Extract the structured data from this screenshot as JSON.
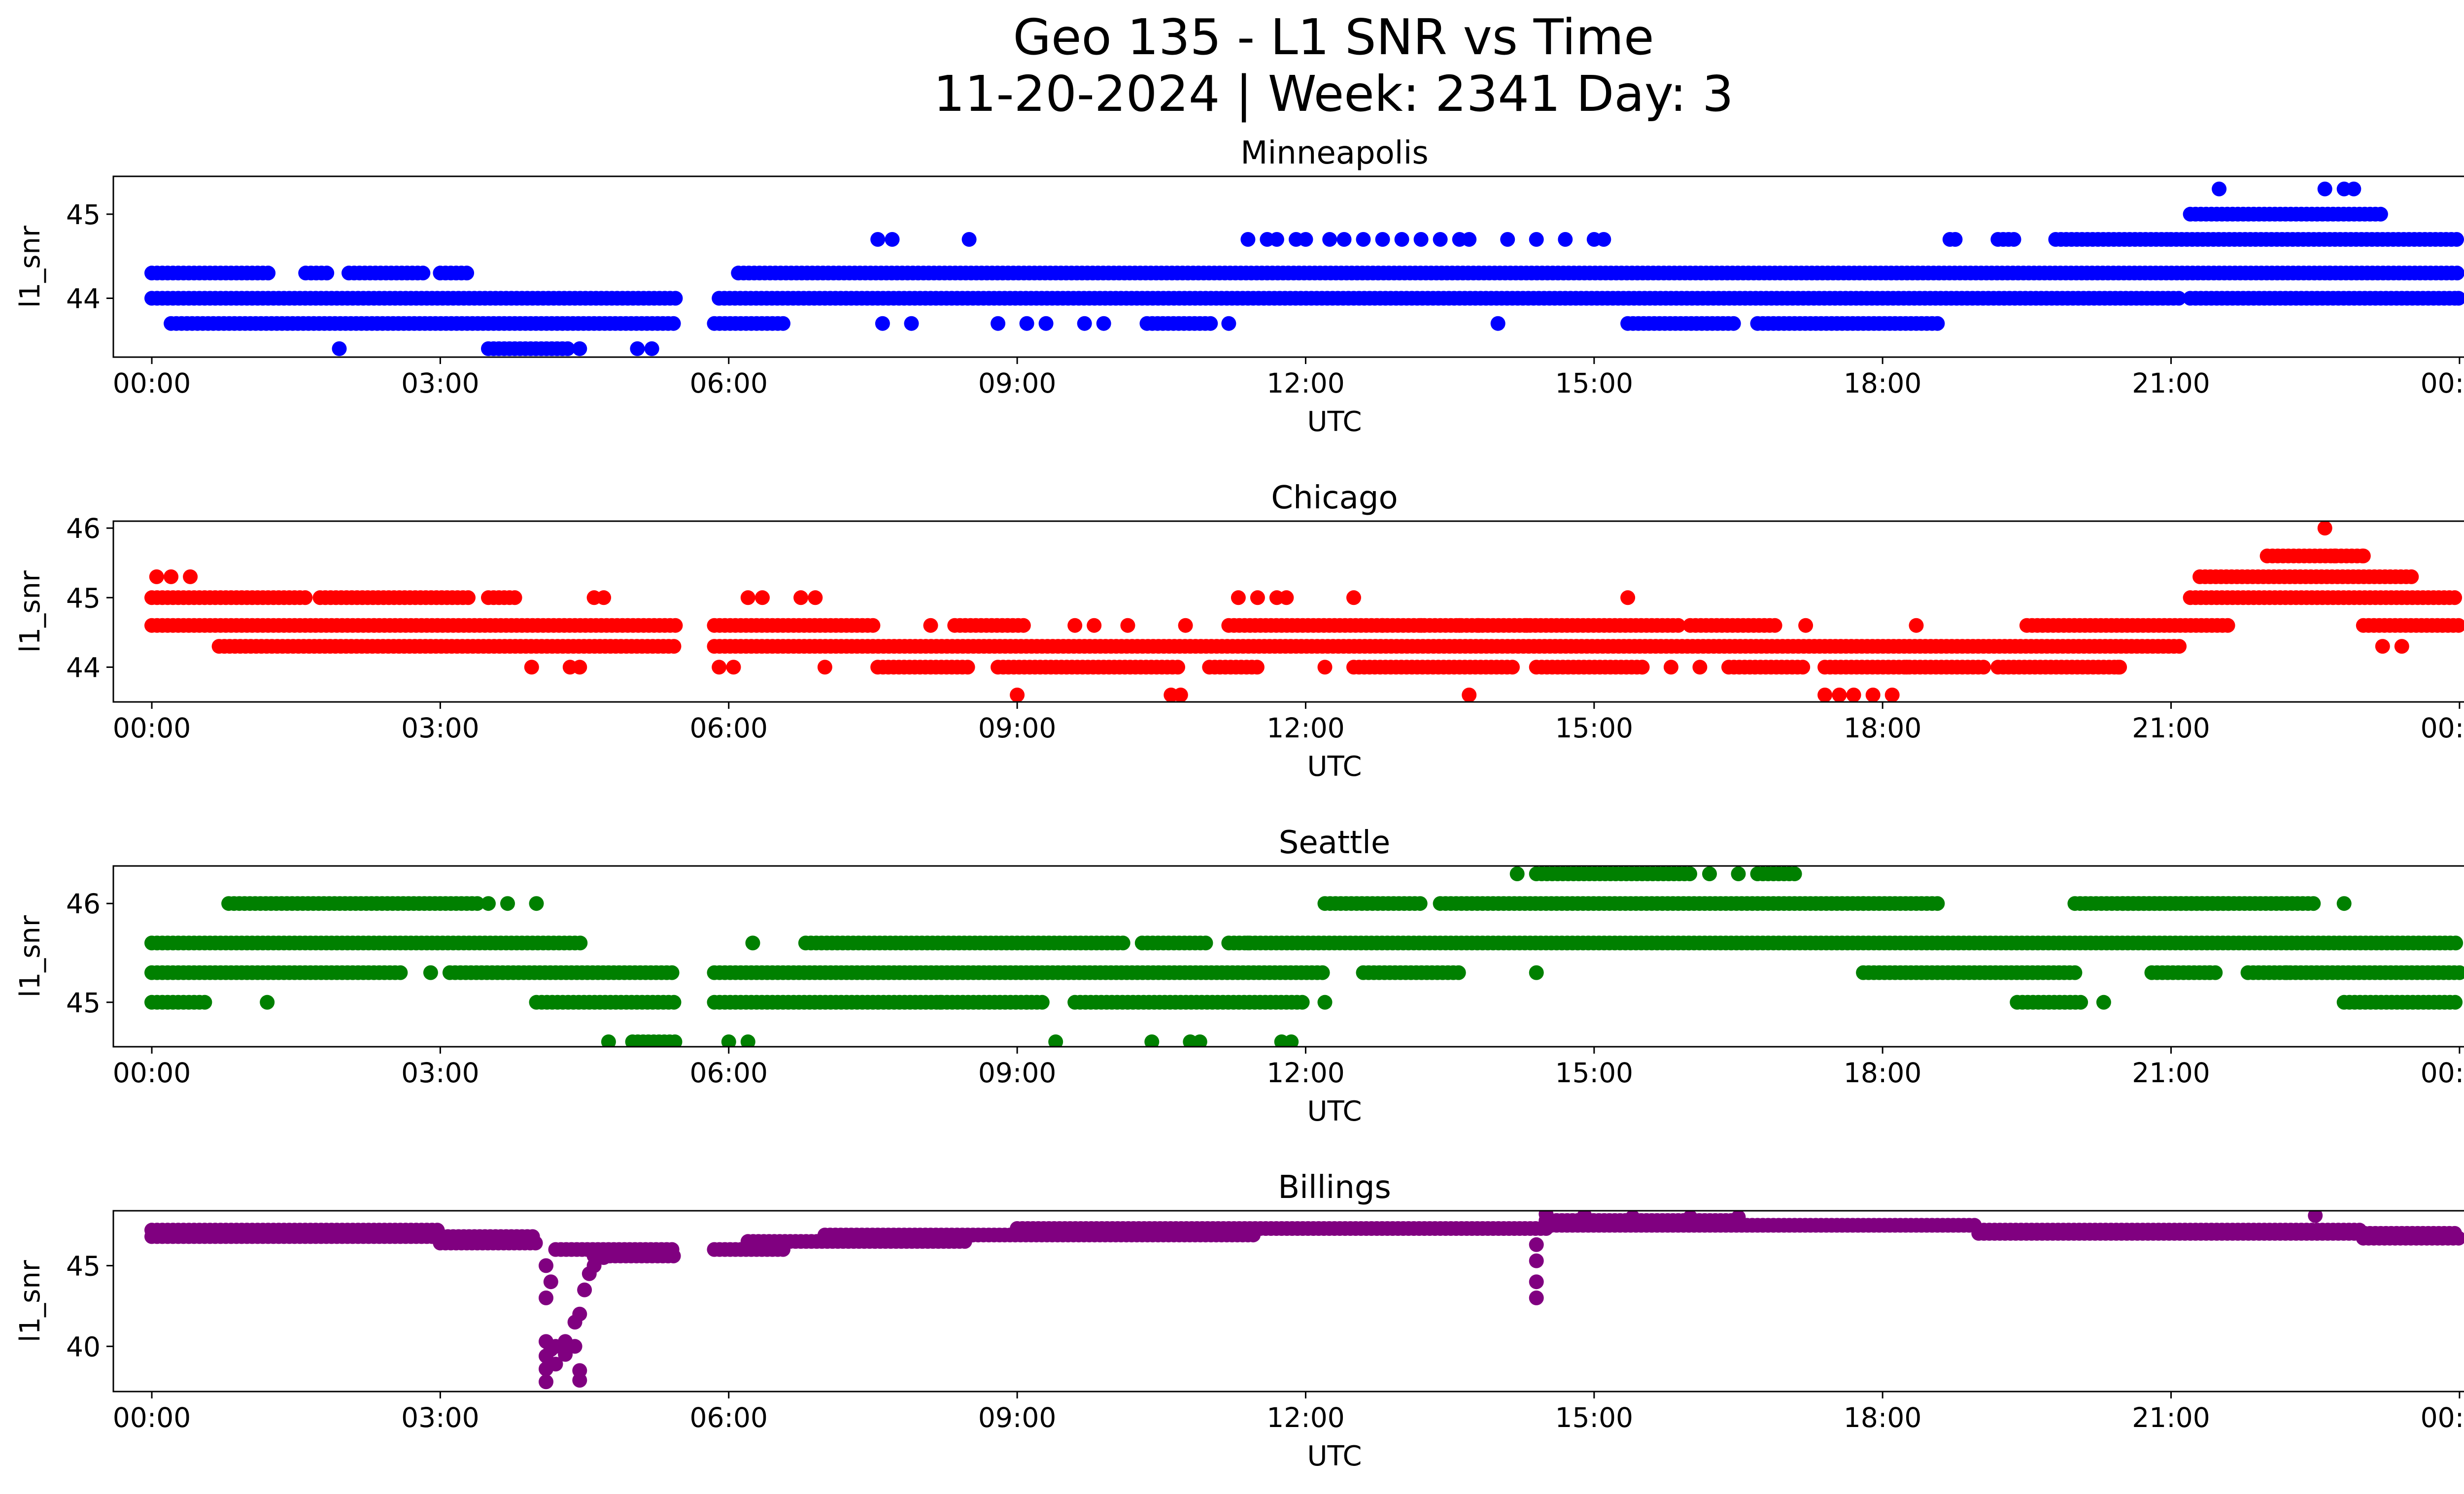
{
  "figure": {
    "title_line1": "Geo 135 - L1 SNR vs Time",
    "title_line2": "11-20-2024 | Week: 2341 Day: 3"
  },
  "chart_data": [
    {
      "type": "scatter",
      "title": "Minneapolis",
      "xlabel": "UTC",
      "ylabel": "l1_snr",
      "color": "#0000ff",
      "xlim": [
        -0.4,
        25.0
      ],
      "ylim": [
        43.3,
        45.45
      ],
      "xticks": [
        0,
        3,
        6,
        9,
        12,
        15,
        18,
        21,
        24
      ],
      "xticklabels": [
        "00:00",
        "03:00",
        "06:00",
        "09:00",
        "12:00",
        "15:00",
        "18:00",
        "21:00",
        "00:00"
      ],
      "yticks": [
        44,
        45
      ],
      "yticklabels": [
        "44",
        "45"
      ],
      "segments": [
        {
          "y": 44.0,
          "ranges": [
            [
              0.0,
              5.45
            ],
            [
              5.9,
              21.1
            ],
            [
              21.2,
              24.0
            ]
          ]
        },
        {
          "y": 44.3,
          "ranges": [
            [
              0.0,
              1.25
            ],
            [
              1.6,
              1.85
            ],
            [
              2.05,
              2.85
            ],
            [
              3.0,
              3.3
            ],
            [
              6.1,
              23.99
            ]
          ]
        },
        {
          "y": 43.7,
          "ranges": [
            [
              0.2,
              5.45
            ],
            [
              5.85,
              6.6
            ],
            [
              10.35,
              11.05
            ],
            [
              15.35,
              16.5
            ],
            [
              16.7,
              18.6
            ]
          ]
        },
        {
          "y": 44.7,
          "ranges": [
            [
              18.7,
              18.8
            ],
            [
              19.2,
              19.4
            ],
            [
              19.8,
              21.0
            ],
            [
              21.0,
              23.99
            ]
          ]
        },
        {
          "y": 45.0,
          "ranges": [
            [
              21.2,
              23.2
            ]
          ]
        },
        {
          "y": 43.4,
          "ranges": [
            [
              3.5,
              4.35
            ]
          ]
        }
      ],
      "points": [
        [
          1.95,
          43.4
        ],
        [
          4.45,
          43.4
        ],
        [
          5.05,
          43.4
        ],
        [
          5.2,
          43.4
        ],
        [
          7.55,
          44.7
        ],
        [
          7.7,
          44.7
        ],
        [
          8.5,
          44.7
        ],
        [
          7.6,
          43.7
        ],
        [
          7.9,
          43.7
        ],
        [
          8.8,
          43.7
        ],
        [
          9.1,
          43.7
        ],
        [
          9.3,
          43.7
        ],
        [
          9.7,
          43.7
        ],
        [
          9.9,
          43.7
        ],
        [
          11.2,
          43.7
        ],
        [
          14.0,
          43.7
        ],
        [
          11.4,
          44.7
        ],
        [
          11.6,
          44.7
        ],
        [
          11.7,
          44.7
        ],
        [
          11.9,
          44.7
        ],
        [
          12.0,
          44.7
        ],
        [
          12.25,
          44.7
        ],
        [
          12.4,
          44.7
        ],
        [
          12.6,
          44.7
        ],
        [
          12.8,
          44.7
        ],
        [
          13.0,
          44.7
        ],
        [
          13.2,
          44.7
        ],
        [
          13.4,
          44.7
        ],
        [
          13.6,
          44.7
        ],
        [
          13.7,
          44.7
        ],
        [
          14.1,
          44.7
        ],
        [
          14.4,
          44.7
        ],
        [
          14.7,
          44.7
        ],
        [
          15.0,
          44.7
        ],
        [
          15.1,
          44.7
        ],
        [
          21.5,
          45.3
        ],
        [
          22.6,
          45.3
        ],
        [
          22.8,
          45.3
        ],
        [
          22.9,
          45.3
        ],
        [
          22.65,
          44.3
        ],
        [
          23.99,
          44.0
        ]
      ]
    },
    {
      "type": "scatter",
      "title": "Chicago",
      "xlabel": "UTC",
      "ylabel": "l1_snr",
      "color": "#ff0000",
      "xlim": [
        -0.4,
        25.0
      ],
      "ylim": [
        43.5,
        46.1
      ],
      "xticks": [
        0,
        3,
        6,
        9,
        12,
        15,
        18,
        21,
        24
      ],
      "xticklabels": [
        "00:00",
        "03:00",
        "06:00",
        "09:00",
        "12:00",
        "15:00",
        "18:00",
        "21:00",
        "00:00"
      ],
      "yticks": [
        44,
        45,
        46
      ],
      "yticklabels": [
        "44",
        "45",
        "46"
      ],
      "segments": [
        {
          "y": 45.0,
          "ranges": [
            [
              0.0,
              1.6
            ],
            [
              1.75,
              3.3
            ],
            [
              3.5,
              3.8
            ],
            [
              21.2,
              24.0
            ]
          ]
        },
        {
          "y": 44.6,
          "ranges": [
            [
              0.0,
              5.45
            ],
            [
              5.85,
              7.5
            ],
            [
              8.35,
              9.1
            ],
            [
              11.2,
              15.9
            ],
            [
              16.0,
              16.9
            ],
            [
              19.5,
              21.6
            ],
            [
              23.0,
              24.0
            ]
          ]
        },
        {
          "y": 44.3,
          "ranges": [
            [
              0.7,
              5.45
            ],
            [
              5.85,
              21.1
            ]
          ]
        },
        {
          "y": 44.0,
          "ranges": [
            [
              7.55,
              8.5
            ],
            [
              8.8,
              10.7
            ],
            [
              11.0,
              11.5
            ],
            [
              12.5,
              14.2
            ],
            [
              14.4,
              15.5
            ],
            [
              16.4,
              17.2
            ],
            [
              17.4,
              19.1
            ],
            [
              19.2,
              20.5
            ]
          ]
        },
        {
          "y": 45.3,
          "ranges": [
            [
              21.3,
              23.5
            ]
          ]
        },
        {
          "y": 45.6,
          "ranges": [
            [
              22.0,
              23.0
            ]
          ]
        }
      ],
      "points": [
        [
          0.05,
          45.3
        ],
        [
          0.2,
          45.3
        ],
        [
          0.4,
          45.3
        ],
        [
          3.95,
          44.0
        ],
        [
          4.35,
          44.0
        ],
        [
          4.45,
          44.0
        ],
        [
          4.6,
          45.0
        ],
        [
          4.7,
          45.0
        ],
        [
          5.9,
          44.0
        ],
        [
          6.05,
          44.0
        ],
        [
          6.2,
          45.0
        ],
        [
          6.35,
          45.0
        ],
        [
          6.75,
          45.0
        ],
        [
          6.9,
          45.0
        ],
        [
          7.0,
          44.0
        ],
        [
          8.1,
          44.6
        ],
        [
          9.0,
          43.6
        ],
        [
          9.6,
          44.6
        ],
        [
          9.8,
          44.6
        ],
        [
          10.15,
          44.6
        ],
        [
          10.6,
          43.6
        ],
        [
          10.7,
          43.6
        ],
        [
          10.75,
          44.6
        ],
        [
          11.3,
          45.0
        ],
        [
          11.5,
          45.0
        ],
        [
          11.7,
          45.0
        ],
        [
          11.8,
          45.0
        ],
        [
          12.2,
          44.0
        ],
        [
          12.5,
          45.0
        ],
        [
          12.8,
          44.6
        ],
        [
          13.2,
          44.6
        ],
        [
          13.6,
          44.6
        ],
        [
          13.7,
          43.6
        ],
        [
          13.8,
          44.6
        ],
        [
          14.3,
          44.6
        ],
        [
          15.35,
          45.0
        ],
        [
          15.5,
          44.0
        ],
        [
          15.8,
          44.0
        ],
        [
          16.1,
          44.0
        ],
        [
          17.2,
          44.6
        ],
        [
          17.4,
          43.6
        ],
        [
          17.55,
          43.6
        ],
        [
          17.7,
          43.6
        ],
        [
          17.9,
          43.6
        ],
        [
          18.1,
          43.6
        ],
        [
          18.25,
          44.0
        ],
        [
          18.35,
          44.6
        ],
        [
          20.45,
          44.0
        ],
        [
          22.6,
          46.0
        ],
        [
          22.7,
          45.6
        ],
        [
          23.0,
          45.6
        ],
        [
          23.2,
          44.3
        ],
        [
          23.4,
          44.3
        ]
      ]
    },
    {
      "type": "scatter",
      "title": "Seattle",
      "xlabel": "UTC",
      "ylabel": "l1_snr",
      "color": "#008000",
      "xlim": [
        -0.4,
        25.0
      ],
      "ylim": [
        44.55,
        46.38
      ],
      "xticks": [
        0,
        3,
        6,
        9,
        12,
        15,
        18,
        21,
        24
      ],
      "xticklabels": [
        "00:00",
        "03:00",
        "06:00",
        "09:00",
        "12:00",
        "15:00",
        "18:00",
        "21:00",
        "00:00"
      ],
      "yticks": [
        45,
        46
      ],
      "yticklabels": [
        "45",
        "46"
      ],
      "segments": [
        {
          "y": 46.0,
          "ranges": [
            [
              0.8,
              3.4
            ],
            [
              12.2,
              13.2
            ],
            [
              13.4,
              18.6
            ],
            [
              20.0,
              21.6
            ],
            [
              20.5,
              22.5
            ]
          ]
        },
        {
          "y": 45.6,
          "ranges": [
            [
              0.0,
              4.5
            ],
            [
              6.8,
              10.1
            ],
            [
              10.3,
              11.0
            ],
            [
              11.2,
              24.0
            ]
          ]
        },
        {
          "y": 45.3,
          "ranges": [
            [
              0.0,
              2.6
            ],
            [
              3.1,
              5.45
            ],
            [
              5.85,
              12.2
            ],
            [
              12.6,
              13.6
            ],
            [
              17.8,
              20.0
            ],
            [
              20.8,
              21.5
            ],
            [
              21.8,
              24.0
            ]
          ]
        },
        {
          "y": 45.0,
          "ranges": [
            [
              0.0,
              0.6
            ],
            [
              4.0,
              5.45
            ],
            [
              5.85,
              9.3
            ],
            [
              9.6,
              12.0
            ],
            [
              19.4,
              20.1
            ],
            [
              22.8,
              24.0
            ]
          ]
        },
        {
          "y": 46.3,
          "ranges": [
            [
              14.4,
              16.0
            ],
            [
              16.7,
              17.1
            ]
          ]
        },
        {
          "y": 44.6,
          "ranges": [
            [
              5.0,
              5.45
            ]
          ]
        }
      ],
      "points": [
        [
          1.2,
          45.0
        ],
        [
          2.9,
          45.3
        ],
        [
          3.5,
          46.0
        ],
        [
          3.7,
          46.0
        ],
        [
          4.0,
          46.0
        ],
        [
          4.75,
          44.6
        ],
        [
          6.0,
          44.6
        ],
        [
          6.2,
          44.6
        ],
        [
          6.25,
          45.6
        ],
        [
          8.2,
          45.0
        ],
        [
          9.1,
          45.0
        ],
        [
          9.4,
          44.6
        ],
        [
          10.4,
          44.6
        ],
        [
          10.8,
          44.6
        ],
        [
          10.9,
          44.6
        ],
        [
          11.4,
          45.6
        ],
        [
          11.75,
          44.6
        ],
        [
          11.85,
          44.6
        ],
        [
          12.2,
          45.0
        ],
        [
          14.4,
          45.3
        ],
        [
          14.2,
          46.3
        ],
        [
          16.2,
          46.3
        ],
        [
          16.5,
          46.3
        ],
        [
          17.8,
          46.0
        ],
        [
          20.3,
          45.0
        ],
        [
          21.4,
          45.3
        ],
        [
          22.2,
          45.3
        ],
        [
          22.8,
          46.0
        ]
      ]
    },
    {
      "type": "scatter",
      "title": "Billings",
      "xlabel": "UTC",
      "ylabel": "l1_snr",
      "color": "#800080",
      "xlim": [
        -0.4,
        25.0
      ],
      "ylim": [
        37.2,
        48.4
      ],
      "xticks": [
        0,
        3,
        6,
        9,
        12,
        15,
        18,
        21,
        24
      ],
      "xticklabels": [
        "00:00",
        "03:00",
        "06:00",
        "09:00",
        "12:00",
        "15:00",
        "18:00",
        "21:00",
        "00:00"
      ],
      "yticks": [
        40,
        45
      ],
      "yticklabels": [
        "40",
        "45"
      ],
      "segments": [
        {
          "y": 46.8,
          "ranges": [
            [
              0.0,
              4.0
            ]
          ]
        },
        {
          "y": 47.2,
          "ranges": [
            [
              0.0,
              3.0
            ]
          ]
        },
        {
          "y": 46.4,
          "ranges": [
            [
              3.0,
              4.0
            ]
          ]
        },
        {
          "y": 46.0,
          "ranges": [
            [
              4.2,
              5.45
            ],
            [
              5.85,
              6.6
            ]
          ]
        },
        {
          "y": 45.6,
          "ranges": [
            [
              4.6,
              5.45
            ]
          ]
        },
        {
          "y": 46.5,
          "ranges": [
            [
              6.2,
              8.5
            ]
          ]
        },
        {
          "y": 46.9,
          "ranges": [
            [
              7.0,
              11.5
            ]
          ]
        },
        {
          "y": 47.3,
          "ranges": [
            [
              9.0,
              14.5
            ]
          ]
        },
        {
          "y": 47.5,
          "ranges": [
            [
              14.5,
              19.0
            ]
          ]
        },
        {
          "y": 47.8,
          "ranges": [
            [
              14.5,
              16.5
            ]
          ]
        },
        {
          "y": 47.2,
          "ranges": [
            [
              19.0,
              23.0
            ]
          ]
        },
        {
          "y": 47.0,
          "ranges": [
            [
              19.0,
              24.0
            ]
          ]
        },
        {
          "y": 46.7,
          "ranges": [
            [
              23.0,
              24.0
            ]
          ]
        }
      ],
      "points": [
        [
          4.1,
          45.0
        ],
        [
          4.1,
          43.0
        ],
        [
          4.1,
          40.3
        ],
        [
          4.1,
          39.4
        ],
        [
          4.1,
          38.6
        ],
        [
          4.1,
          37.8
        ],
        [
          4.15,
          44.0
        ],
        [
          4.15,
          39.8
        ],
        [
          4.2,
          40.0
        ],
        [
          4.2,
          38.9
        ],
        [
          4.3,
          40.3
        ],
        [
          4.3,
          39.5
        ],
        [
          4.4,
          41.5
        ],
        [
          4.4,
          40.0
        ],
        [
          4.45,
          42.0
        ],
        [
          4.45,
          38.5
        ],
        [
          4.45,
          37.9
        ],
        [
          4.5,
          43.5
        ],
        [
          4.55,
          44.5
        ],
        [
          4.6,
          45.0
        ],
        [
          4.7,
          45.5
        ],
        [
          14.4,
          46.3
        ],
        [
          14.4,
          45.3
        ],
        [
          14.4,
          44.0
        ],
        [
          14.4,
          43.0
        ],
        [
          14.5,
          48.2
        ],
        [
          14.9,
          48.1
        ],
        [
          15.4,
          48.0
        ],
        [
          16.0,
          48.0
        ],
        [
          16.5,
          48.0
        ],
        [
          22.5,
          48.1
        ]
      ]
    }
  ]
}
